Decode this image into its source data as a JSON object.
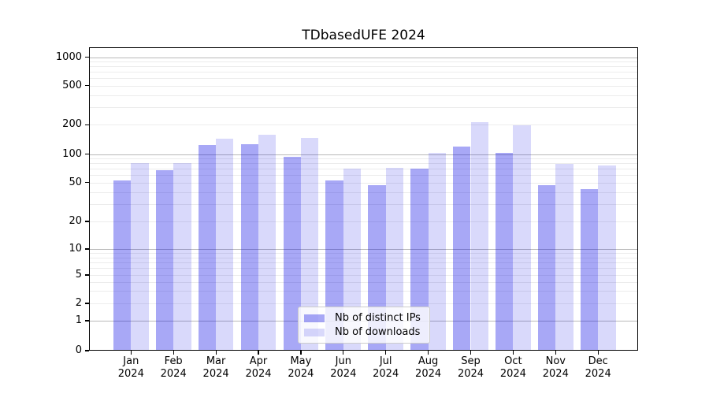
{
  "chart_data": {
    "type": "bar",
    "title": "TDbasedUFE 2024",
    "categories": [
      "Jan",
      "Feb",
      "Mar",
      "Apr",
      "May",
      "Jun",
      "Jul",
      "Aug",
      "Sep",
      "Oct",
      "Nov",
      "Dec"
    ],
    "year_label": "2024",
    "series": [
      {
        "name": "Nb of distinct IPs",
        "color": "#0000E657",
        "values": [
          53,
          68,
          125,
          126,
          94,
          53,
          47,
          70,
          119,
          103,
          47,
          43
        ]
      },
      {
        "name": "Nb of downloads",
        "color": "#0000E626",
        "values": [
          80,
          80,
          143,
          157,
          148,
          70,
          72,
          102,
          212,
          196,
          79,
          76
        ]
      }
    ],
    "y_ticks": [
      0,
      1,
      2,
      5,
      10,
      20,
      50,
      100,
      200,
      500,
      1000
    ],
    "yscale": "log-like",
    "ylim": [
      0,
      1300
    ],
    "grid": "horizontal major and minor",
    "legend_position": "inside lower center"
  },
  "colors": {
    "bar_dark": "#0000E657",
    "bar_light": "#0000E626",
    "grid_major": "#b9b9b9",
    "grid_minor": "#ececec",
    "frame": "#000000",
    "background": "#ffffff",
    "legend_border": "#cccccc"
  }
}
